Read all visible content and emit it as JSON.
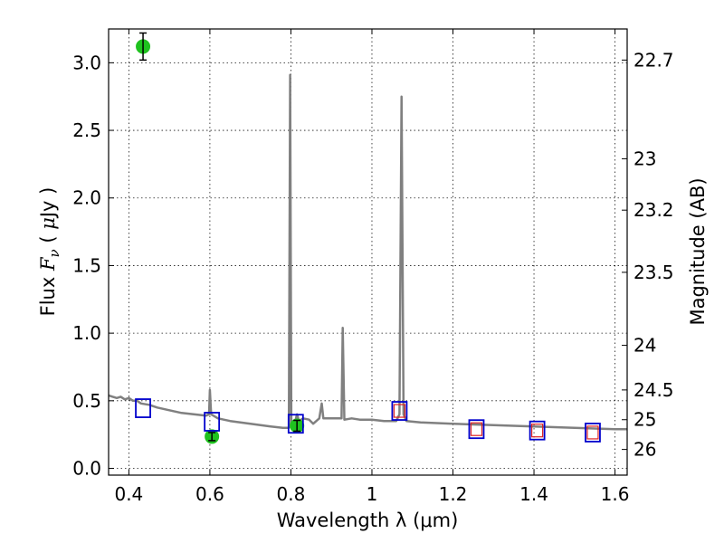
{
  "chart_data": {
    "type": "scatter",
    "title": "",
    "xlabel": "Wavelength  λ (μm)",
    "ylabel": "Flux  F_ν  ( μJy )",
    "y2label": "Magnitude (AB)",
    "xlim": [
      0.35,
      1.63
    ],
    "ylim": [
      -0.05,
      3.25
    ],
    "grid": true,
    "x_ticks": [
      0.4,
      0.6,
      0.8,
      1.0,
      1.2,
      1.4,
      1.6
    ],
    "x_tick_labels": [
      "0.4",
      "0.6",
      "0.8",
      "1",
      "1.2",
      "1.4",
      "1.6"
    ],
    "y_ticks": [
      0.0,
      0.5,
      1.0,
      1.5,
      2.0,
      2.5,
      3.0
    ],
    "y_tick_labels": [
      "0.0",
      "0.5",
      "1.0",
      "1.5",
      "2.0",
      "2.5",
      "3.0"
    ],
    "y2_ticks": [
      {
        "label": "22.7",
        "flux": 3.02
      },
      {
        "label": "23",
        "flux": 2.29
      },
      {
        "label": "23.2",
        "flux": 1.91
      },
      {
        "label": "23.5",
        "flux": 1.45
      },
      {
        "label": "24",
        "flux": 0.91
      },
      {
        "label": "24.5",
        "flux": 0.58
      },
      {
        "label": "25",
        "flux": 0.36
      },
      {
        "label": "26",
        "flux": 0.14
      }
    ],
    "colors": {
      "sed": "#808080",
      "observed": "#1fc21f",
      "model_band": "#0000cc",
      "model_band_inner": "#dd2222"
    },
    "series": [
      {
        "kind": "line",
        "points": [
          [
            0.35,
            0.54
          ],
          [
            0.36,
            0.53
          ],
          [
            0.37,
            0.52
          ],
          [
            0.38,
            0.53
          ],
          [
            0.39,
            0.51
          ],
          [
            0.4,
            0.52
          ],
          [
            0.41,
            0.5
          ],
          [
            0.42,
            0.5
          ],
          [
            0.43,
            0.48
          ],
          [
            0.45,
            0.47
          ],
          [
            0.47,
            0.45
          ],
          [
            0.5,
            0.43
          ],
          [
            0.53,
            0.41
          ],
          [
            0.56,
            0.4
          ],
          [
            0.59,
            0.39
          ],
          [
            0.598,
            0.4
          ],
          [
            0.6,
            0.58
          ],
          [
            0.603,
            0.4
          ],
          [
            0.62,
            0.37
          ],
          [
            0.65,
            0.35
          ],
          [
            0.7,
            0.33
          ],
          [
            0.75,
            0.31
          ],
          [
            0.78,
            0.3
          ],
          [
            0.795,
            0.3
          ],
          [
            0.798,
            2.91
          ],
          [
            0.801,
            0.31
          ],
          [
            0.81,
            0.34
          ],
          [
            0.815,
            0.4
          ],
          [
            0.82,
            0.35
          ],
          [
            0.83,
            0.37
          ],
          [
            0.845,
            0.36
          ],
          [
            0.855,
            0.33
          ],
          [
            0.87,
            0.37
          ],
          [
            0.876,
            0.48
          ],
          [
            0.88,
            0.37
          ],
          [
            0.9,
            0.37
          ],
          [
            0.925,
            0.37
          ],
          [
            0.928,
            1.04
          ],
          [
            0.932,
            0.36
          ],
          [
            0.95,
            0.37
          ],
          [
            0.97,
            0.36
          ],
          [
            1.0,
            0.36
          ],
          [
            1.03,
            0.35
          ],
          [
            1.06,
            0.35
          ],
          [
            1.068,
            0.4
          ],
          [
            1.073,
            2.75
          ],
          [
            1.078,
            0.4
          ],
          [
            1.085,
            0.35
          ],
          [
            1.12,
            0.34
          ],
          [
            1.2,
            0.33
          ],
          [
            1.3,
            0.32
          ],
          [
            1.4,
            0.31
          ],
          [
            1.5,
            0.3
          ],
          [
            1.6,
            0.29
          ],
          [
            1.63,
            0.29
          ]
        ]
      },
      {
        "kind": "observed",
        "points": [
          {
            "x": 0.435,
            "y": 3.12,
            "err": 0.1
          },
          {
            "x": 0.605,
            "y": 0.235,
            "err": 0.03
          },
          {
            "x": 0.815,
            "y": 0.315,
            "err": 0.04
          }
        ]
      },
      {
        "kind": "model_band",
        "points": [
          {
            "x": 0.435,
            "y": 0.445
          },
          {
            "x": 0.605,
            "y": 0.345
          },
          {
            "x": 0.812,
            "y": 0.33
          },
          {
            "x": 1.068,
            "y": 0.425
          },
          {
            "x": 1.258,
            "y": 0.29
          },
          {
            "x": 1.408,
            "y": 0.28
          },
          {
            "x": 1.545,
            "y": 0.265
          }
        ]
      },
      {
        "kind": "model_band_inner",
        "points": [
          {
            "x": 1.068,
            "y": 0.425
          },
          {
            "x": 1.258,
            "y": 0.29
          },
          {
            "x": 1.408,
            "y": 0.28
          },
          {
            "x": 1.545,
            "y": 0.265
          }
        ]
      }
    ]
  }
}
